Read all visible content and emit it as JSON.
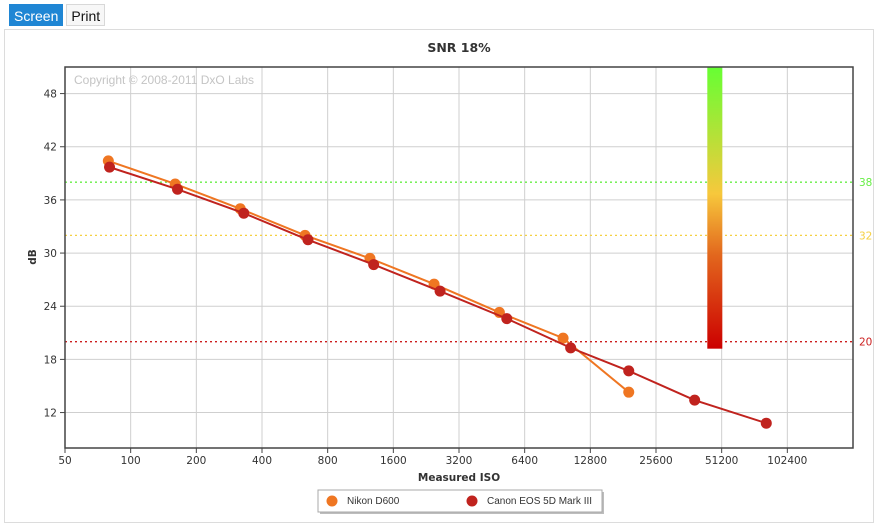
{
  "tabs": [
    {
      "label": "Screen",
      "active": true
    },
    {
      "label": "Print",
      "active": false
    }
  ],
  "copyright": "Copyright © 2008-2011 DxO Labs",
  "chart_data": {
    "type": "line",
    "title": "SNR 18%",
    "xlabel": "Measured ISO",
    "ylabel": "dB",
    "x_scale": "log2",
    "xlim": [
      50,
      204800
    ],
    "ylim": [
      8,
      51
    ],
    "x_ticks": [
      50,
      100,
      200,
      400,
      800,
      1600,
      3200,
      6400,
      12800,
      25600,
      51200,
      102400
    ],
    "y_ticks": [
      12,
      18,
      24,
      30,
      36,
      42,
      48
    ],
    "grid": true,
    "reference_lines": [
      {
        "value": 38,
        "label": "38",
        "color": "#66ee44"
      },
      {
        "value": 32,
        "label": "32",
        "color": "#f5d041"
      },
      {
        "value": 20,
        "label": "20",
        "color": "#cc1f1f"
      }
    ],
    "color_scale": {
      "from": 20,
      "to": 51,
      "colors": [
        "#cc0000",
        "#e2661d",
        "#f7c83c",
        "#66ff33"
      ]
    },
    "series": [
      {
        "name": "Nikon D600",
        "color": "#ef7622",
        "x": [
          79,
          160,
          318,
          630,
          1250,
          2460,
          4900,
          9600,
          19200
        ],
        "y": [
          40.4,
          37.8,
          35.0,
          32.0,
          29.4,
          26.5,
          23.3,
          20.4,
          14.3
        ]
      },
      {
        "name": "Canon EOS 5D Mark III",
        "color": "#c0231e",
        "x": [
          80,
          164,
          330,
          650,
          1300,
          2620,
          5300,
          10400,
          19200,
          38500,
          82000
        ],
        "y": [
          39.7,
          37.2,
          34.5,
          31.5,
          28.7,
          25.7,
          22.6,
          19.3,
          16.7,
          13.4,
          10.8
        ]
      }
    ],
    "legend_position": "bottom"
  }
}
